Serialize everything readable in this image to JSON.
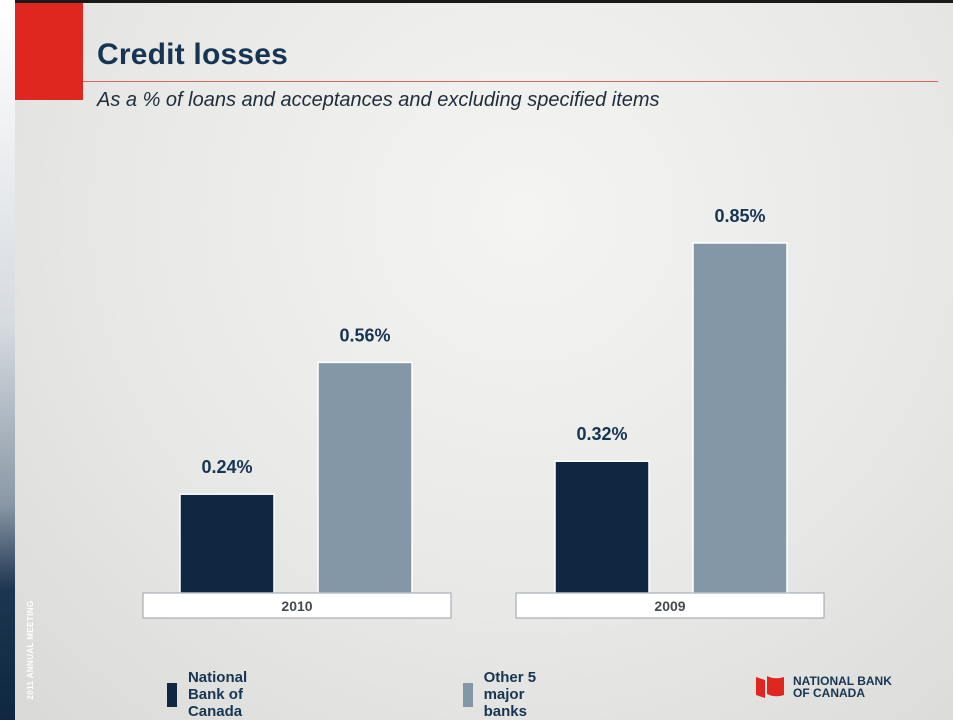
{
  "slide": {
    "title": "Credit losses",
    "subtitle": "As a % of loans and acceptances and excluding specified items",
    "side_label": "2011 ANNUAL MEETING",
    "logo_text": "NATIONAL BANK OF CANADA"
  },
  "colors": {
    "title": "#163553",
    "accent_red": "#e0271f",
    "national_bank": "#0f2740",
    "other_banks": "#8497a6"
  },
  "chart_data": {
    "type": "bar",
    "title": "Credit losses",
    "subtitle": "As a % of loans and acceptances and excluding specified items",
    "categories": [
      "2010",
      "2009"
    ],
    "series": [
      {
        "name": "National Bank of Canada",
        "values": [
          0.24,
          0.32
        ],
        "labels": [
          "0.24%",
          "0.32%"
        ],
        "color": "#0f2740"
      },
      {
        "name": "Other 5 major banks",
        "values": [
          0.56,
          0.85
        ],
        "labels": [
          "0.56%",
          "0.85%"
        ],
        "color": "#8497a6"
      }
    ],
    "ylim": [
      0,
      0.85
    ],
    "grid": false,
    "legend": "bottom"
  }
}
